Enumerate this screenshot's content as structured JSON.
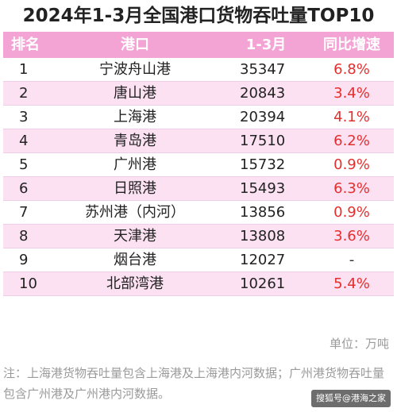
{
  "title": "2024年1-3月全国港口货物吞吐量TOP10",
  "header": {
    "rank": "排名",
    "port": "港口",
    "period": "1-3月",
    "growth": "同比增速"
  },
  "colors": {
    "header_bg": "#f3a3d4",
    "alt_row_bg": "#fbe1f1",
    "growth_text": "#e52e2e"
  },
  "chart_data": {
    "type": "table",
    "title": "2024年1-3月全国港口货物吞吐量TOP10",
    "columns": [
      "排名",
      "港口",
      "1-3月",
      "同比增速"
    ],
    "rows": [
      {
        "rank": "1",
        "port": "宁波舟山港",
        "value": 35347,
        "growth": "6.8%"
      },
      {
        "rank": "2",
        "port": "唐山港",
        "value": 20843,
        "growth": "3.4%"
      },
      {
        "rank": "3",
        "port": "上海港",
        "value": 20394,
        "growth": "4.1%"
      },
      {
        "rank": "4",
        "port": "青岛港",
        "value": 17510,
        "growth": "6.2%"
      },
      {
        "rank": "5",
        "port": "广州港",
        "value": 15732,
        "growth": "0.9%"
      },
      {
        "rank": "6",
        "port": "日照港",
        "value": 15493,
        "growth": "6.3%"
      },
      {
        "rank": "7",
        "port": "苏州港（内河）",
        "value": 13856,
        "growth": "0.9%"
      },
      {
        "rank": "8",
        "port": "天津港",
        "value": 13808,
        "growth": "3.6%"
      },
      {
        "rank": "9",
        "port": "烟台港",
        "value": 12027,
        "growth": "-"
      },
      {
        "rank": "10",
        "port": "北部湾港",
        "value": 10261,
        "growth": "5.4%"
      }
    ]
  },
  "unit": "单位：万吨",
  "note": "注：上海港货物吞吐量包含上海港及上海港内河数据；广州港货物吞吐量包含广州港及广州港内河数据。",
  "watermark": "搜狐号@港海之家"
}
